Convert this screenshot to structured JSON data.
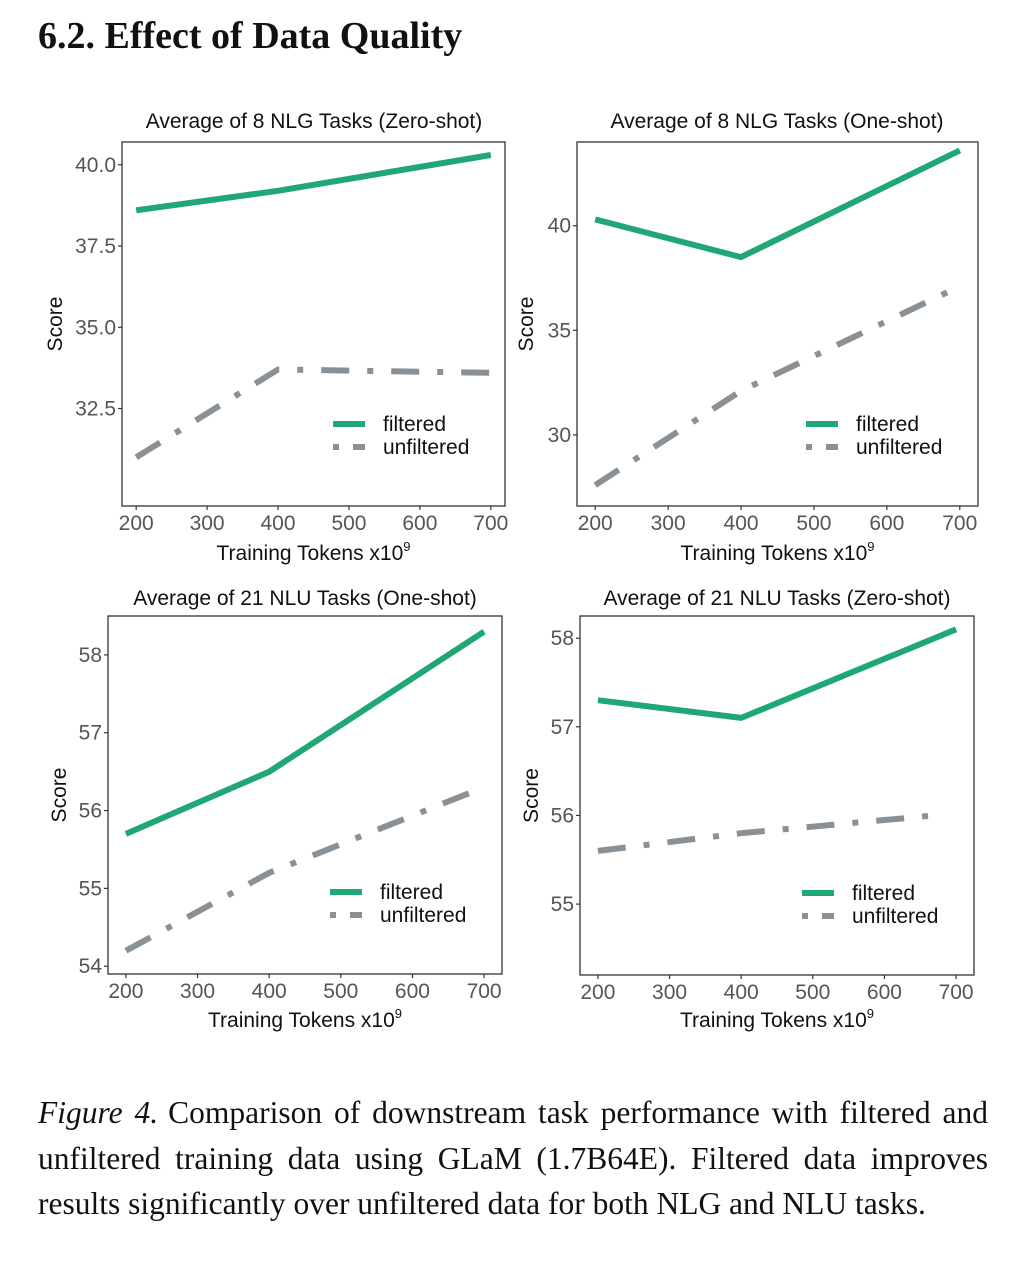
{
  "heading": "6.2. Effect of Data Quality",
  "caption": {
    "figure_label": "Figure 4.",
    "text": "Comparison of downstream task performance with filtered and unfiltered training data using GLaM (1.7B64E). Filtered data improves results significantly over unfiltered data for both NLG and NLU tasks."
  },
  "colors": {
    "filtered": "#1fa774",
    "unfiltered": "#8a9196"
  },
  "chart_data": [
    {
      "type": "line",
      "title": "Average of 8 NLG Tasks (Zero-shot)",
      "xlabel": "Training Tokens x10",
      "xlabel_superscript": "9",
      "ylabel": "Score",
      "xlim": [
        180,
        720
      ],
      "ylim": [
        29.5,
        40.7
      ],
      "xticks": [
        200,
        300,
        400,
        500,
        600,
        700
      ],
      "xtick_labels": [
        "200",
        "300",
        "400",
        "500",
        "600",
        "700"
      ],
      "yticks": [
        32.5,
        35.0,
        37.5,
        40.0
      ],
      "ytick_labels": [
        "32.5",
        "35.0",
        "37.5",
        "40.0"
      ],
      "grid": false,
      "legend_position": "bottom-right",
      "series": [
        {
          "name": "filtered",
          "style": "solid",
          "x": [
            200,
            400,
            700
          ],
          "values": [
            38.6,
            39.2,
            40.3
          ]
        },
        {
          "name": "unfiltered",
          "style": "dashdot",
          "x": [
            200,
            400,
            700
          ],
          "values": [
            31.0,
            33.7,
            33.6
          ]
        }
      ]
    },
    {
      "type": "line",
      "title": "Average of 8 NLG Tasks (One-shot)",
      "xlabel": "Training Tokens x10",
      "xlabel_superscript": "9",
      "ylabel": "Score",
      "xlim": [
        175,
        725
      ],
      "ylim": [
        26.6,
        44.0
      ],
      "xticks": [
        200,
        300,
        400,
        500,
        600,
        700
      ],
      "xtick_labels": [
        "200",
        "300",
        "400",
        "500",
        "600",
        "700"
      ],
      "yticks": [
        30,
        35,
        40
      ],
      "ytick_labels": [
        "30",
        "35",
        "40"
      ],
      "grid": false,
      "legend_position": "bottom-right",
      "series": [
        {
          "name": "filtered",
          "style": "solid",
          "x": [
            200,
            400,
            700
          ],
          "values": [
            40.3,
            38.5,
            43.6
          ]
        },
        {
          "name": "unfiltered",
          "style": "dashdot",
          "x": [
            200,
            400,
            700
          ],
          "values": [
            27.6,
            32.1,
            37.1
          ]
        }
      ]
    },
    {
      "type": "line",
      "title": "Average of 21 NLU Tasks (One-shot)",
      "xlabel": "Training Tokens x10",
      "xlabel_superscript": "9",
      "ylabel": "Score",
      "xlim": [
        175,
        725
      ],
      "ylim": [
        53.9,
        58.5
      ],
      "xticks": [
        200,
        300,
        400,
        500,
        600,
        700
      ],
      "xtick_labels": [
        "200",
        "300",
        "400",
        "500",
        "600",
        "700"
      ],
      "yticks": [
        54,
        55,
        56,
        57,
        58
      ],
      "ytick_labels": [
        "54",
        "55",
        "56",
        "57",
        "58"
      ],
      "grid": false,
      "legend_position": "bottom-right",
      "series": [
        {
          "name": "filtered",
          "style": "solid",
          "x": [
            200,
            400,
            700
          ],
          "values": [
            55.7,
            56.5,
            58.3
          ]
        },
        {
          "name": "unfiltered",
          "style": "dashdot",
          "x": [
            200,
            400,
            700
          ],
          "values": [
            54.2,
            55.2,
            56.3
          ]
        }
      ]
    },
    {
      "type": "line",
      "title": "Average of 21 NLU Tasks (Zero-shot)",
      "xlabel": "Training Tokens x10",
      "xlabel_superscript": "9",
      "ylabel": "Score",
      "xlim": [
        175,
        725
      ],
      "ylim": [
        54.2,
        58.25
      ],
      "xticks": [
        200,
        300,
        400,
        500,
        600,
        700
      ],
      "xtick_labels": [
        "200",
        "300",
        "400",
        "500",
        "600",
        "700"
      ],
      "yticks": [
        55,
        56,
        57,
        58
      ],
      "ytick_labels": [
        "55",
        "56",
        "57",
        "58"
      ],
      "grid": false,
      "legend_position": "bottom-right",
      "series": [
        {
          "name": "filtered",
          "style": "solid",
          "x": [
            200,
            400,
            700
          ],
          "values": [
            57.3,
            57.1,
            58.1
          ]
        },
        {
          "name": "unfiltered",
          "style": "dashdot",
          "x": [
            200,
            400,
            670
          ],
          "values": [
            55.6,
            55.8,
            56.0
          ]
        }
      ]
    }
  ]
}
